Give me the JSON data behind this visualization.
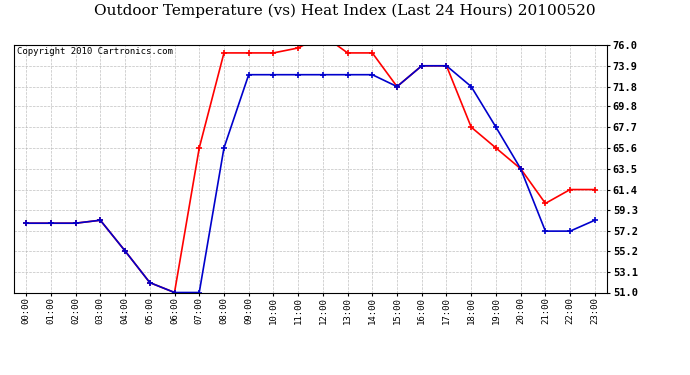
{
  "title": "Outdoor Temperature (vs) Heat Index (Last 24 Hours) 20100520",
  "copyright": "Copyright 2010 Cartronics.com",
  "x_labels": [
    "00:00",
    "01:00",
    "02:00",
    "03:00",
    "04:00",
    "05:00",
    "06:00",
    "07:00",
    "08:00",
    "09:00",
    "10:00",
    "11:00",
    "12:00",
    "13:00",
    "14:00",
    "15:00",
    "16:00",
    "17:00",
    "18:00",
    "19:00",
    "20:00",
    "21:00",
    "22:00",
    "23:00"
  ],
  "temp_red": [
    58.0,
    58.0,
    58.0,
    58.3,
    55.2,
    52.0,
    51.0,
    65.6,
    75.2,
    75.2,
    75.2,
    75.7,
    77.0,
    75.2,
    75.2,
    71.8,
    73.9,
    73.9,
    67.7,
    65.6,
    63.5,
    60.0,
    61.4,
    61.4
  ],
  "heat_blue": [
    58.0,
    58.0,
    58.0,
    58.3,
    55.2,
    52.0,
    51.0,
    51.0,
    65.6,
    73.0,
    73.0,
    73.0,
    73.0,
    73.0,
    73.0,
    71.8,
    73.9,
    73.9,
    71.8,
    67.7,
    63.5,
    57.2,
    57.2,
    58.3
  ],
  "ylim_min": 51.0,
  "ylim_max": 76.0,
  "yticks": [
    51.0,
    53.1,
    55.2,
    57.2,
    59.3,
    61.4,
    63.5,
    65.6,
    67.7,
    69.8,
    71.8,
    73.9,
    76.0
  ],
  "red_color": "#ff0000",
  "blue_color": "#0000cc",
  "grid_color": "#b0b0b0",
  "bg_color": "#ffffff",
  "title_fontsize": 11,
  "copyright_fontsize": 6.5,
  "figwidth": 6.9,
  "figheight": 3.75,
  "dpi": 100
}
